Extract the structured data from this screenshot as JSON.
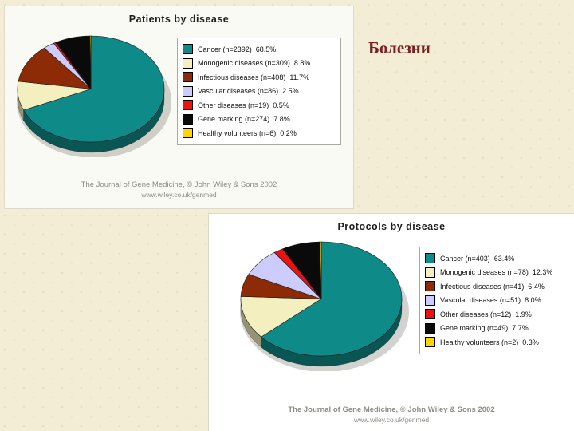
{
  "slide": {
    "title": "Болезни",
    "title_color": "#7a2020",
    "background_color": "#f4edd5"
  },
  "chart_data": [
    {
      "type": "pie",
      "title": "Patients by disease",
      "legend_position": "right",
      "footer_line1": "The Journal of Gene Medicine, © John Wiley & Sons 2002",
      "footer_line2": "www.wiley.co.uk/genmed",
      "slices": [
        {
          "label": "Cancer (n=2392)",
          "value": 68.5,
          "pct_label": "68.5%",
          "color": "#0e8a88"
        },
        {
          "label": "Monogenic diseases (n=309)",
          "value": 8.8,
          "pct_label": "8.8%",
          "color": "#f4efbe"
        },
        {
          "label": "Infectious diseases (n=408)",
          "value": 11.7,
          "pct_label": "11.7%",
          "color": "#8e2b07"
        },
        {
          "label": "Vascular diseases (n=86)",
          "value": 2.5,
          "pct_label": "2.5%",
          "color": "#ccccff"
        },
        {
          "label": "Other diseases (n=19)",
          "value": 0.5,
          "pct_label": "0.5%",
          "color": "#ee1111"
        },
        {
          "label": "Gene marking (n=274)",
          "value": 7.8,
          "pct_label": "7.8%",
          "color": "#0a0a0a"
        },
        {
          "label": "Healthy volunteers (n=6)",
          "value": 0.2,
          "pct_label": "0.2%",
          "color": "#ffd400"
        }
      ]
    },
    {
      "type": "pie",
      "title": "Protocols by disease",
      "legend_position": "right",
      "footer_line1": "The Journal of Gene Medicine, © John Wiley & Sons 2002",
      "footer_line2": "www.wiley.co.uk/genmed",
      "slices": [
        {
          "label": "Cancer (n=403)",
          "value": 63.4,
          "pct_label": "63.4%",
          "color": "#0e8a88"
        },
        {
          "label": "Monogenic diseases (n=78)",
          "value": 12.3,
          "pct_label": "12.3%",
          "color": "#f4efbe"
        },
        {
          "label": "Infectious diseases (n=41)",
          "value": 6.4,
          "pct_label": "6.4%",
          "color": "#8e2b07"
        },
        {
          "label": "Vascular diseases (n=51)",
          "value": 8.0,
          "pct_label": "8.0%",
          "color": "#ccccff"
        },
        {
          "label": "Other diseases (n=12)",
          "value": 1.9,
          "pct_label": "1.9%",
          "color": "#ee1111"
        },
        {
          "label": "Gene marking (n=49)",
          "value": 7.7,
          "pct_label": "7.7%",
          "color": "#0a0a0a"
        },
        {
          "label": "Healthy volunteers (n=2)",
          "value": 0.3,
          "pct_label": "0.3%",
          "color": "#ffd400"
        }
      ]
    }
  ]
}
